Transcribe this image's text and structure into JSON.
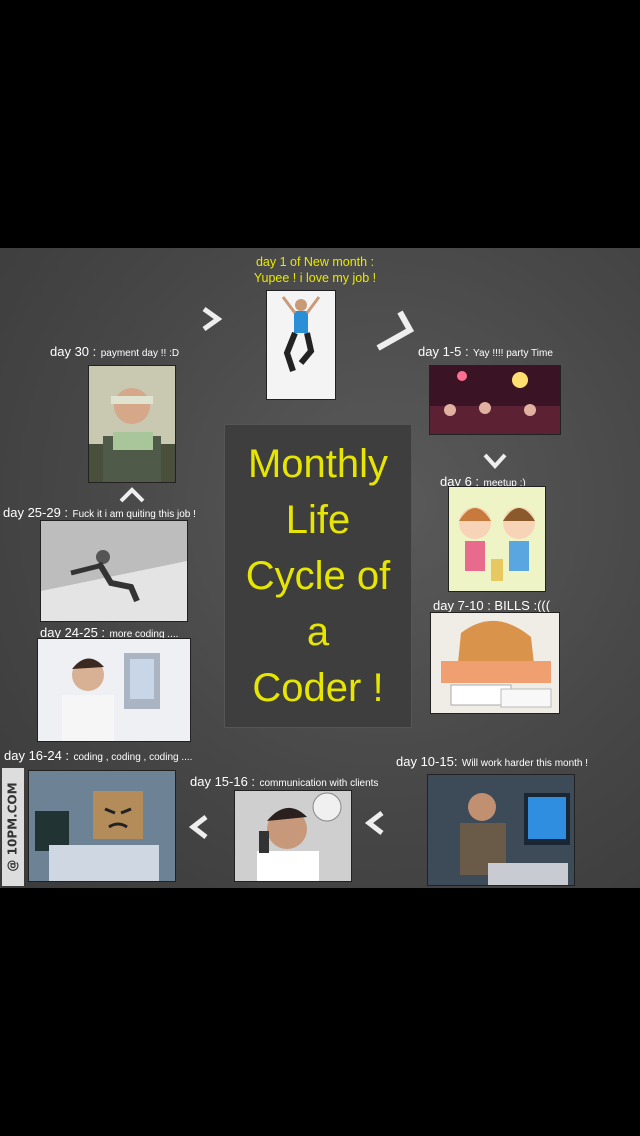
{
  "title_lines": [
    "Monthly",
    "Life",
    "Cycle of",
    "a",
    "Coder !"
  ],
  "top": {
    "line1": "day 1  of New month :",
    "line2": "Yupee ! i love my job !"
  },
  "stages": {
    "day30": {
      "day": "day 30 :",
      "text": "payment day !!  :D"
    },
    "day1_5": {
      "day": "day 1-5 :",
      "text": "Yay !!!! party Time"
    },
    "day6": {
      "day": "day 6 :",
      "text": "meetup ;)"
    },
    "day7_10": {
      "day": "day 7-10 : BILLS :(((",
      "text": ""
    },
    "day25_29": {
      "day": "day 25-29 :",
      "text": "Fuck it i am quiting this job !"
    },
    "day24_25": {
      "day": "day 24-25 :",
      "text": "more  coding ...."
    },
    "day16_24": {
      "day": "day 16-24 :",
      "text": "coding , coding , coding ...."
    },
    "day15_16": {
      "day": "day 15-16 :",
      "text": "communication with clients"
    },
    "day10_15": {
      "day": "day 10-15:",
      "text": "Will work harder this month !"
    }
  },
  "watermark": "@ 10PM.COM",
  "colors": {
    "title": "#e6e600",
    "top_label": "#e8e800",
    "label": "#ffffff",
    "background": "#474747"
  }
}
